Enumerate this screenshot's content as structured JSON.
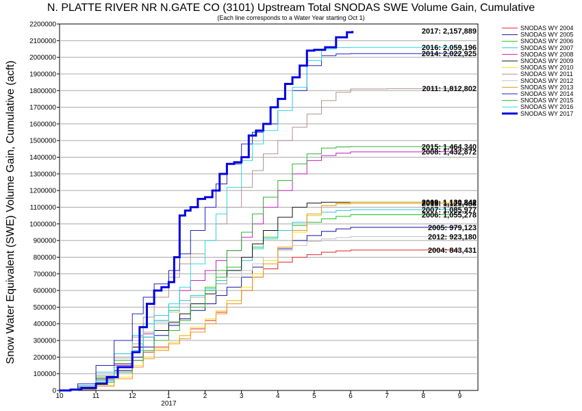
{
  "chart_data": {
    "type": "line",
    "title": "N. PLATTE RIVER NR N.GATE CO (3101) Upstream Total SNODAS SWE Volume Gain, Cumulative",
    "subtitle": "(Each line corresponds to a Water Year starting Oct 1)",
    "ylabel": "Snow Water Equivalent (SWE) Volume Gain, Cumulative (acft)",
    "xlabel": "",
    "x_unit": "month",
    "xlim": [
      10,
      21.5
    ],
    "ylim": [
      0,
      2200000
    ],
    "y_ticks": [
      0,
      100000,
      200000,
      300000,
      400000,
      500000,
      600000,
      700000,
      800000,
      900000,
      1000000,
      1100000,
      1200000,
      1300000,
      1400000,
      1500000,
      1600000,
      1700000,
      1800000,
      1900000,
      2000000,
      2100000,
      2200000
    ],
    "y_tick_labels": [
      "0",
      "100000",
      "200000",
      "300000",
      "400000",
      "500000",
      "600000",
      "700000",
      "800000",
      "900000",
      "1000000",
      "1100000",
      "1200000",
      "1300000",
      "1400000",
      "1500000",
      "1600000",
      "1700000",
      "1800000",
      "1900000",
      "2000000",
      "2100000",
      "2200000"
    ],
    "x_ticks": [
      10,
      11,
      12,
      13,
      14,
      15,
      16,
      17,
      18,
      19,
      20,
      21
    ],
    "x_tick_labels": [
      "10",
      "11",
      "12",
      "1",
      "2",
      "3",
      "4",
      "5",
      "6",
      "7",
      "8",
      "9"
    ],
    "x_year_label": "2017",
    "grid": "horizontal",
    "legend_position": "right-outside",
    "series": [
      {
        "name": "SNODAS WY 2004",
        "color": "#e02020",
        "width": 1,
        "end_label": "2004: 843,431",
        "end_label_y": 843431,
        "x": [
          10,
          10.5,
          11,
          11.5,
          12,
          12.3,
          12.6,
          13,
          13.3,
          13.6,
          14,
          14.3,
          14.6,
          15,
          15.3,
          15.6,
          16,
          16.4,
          16.8,
          17.2,
          17.6,
          18,
          19,
          20,
          21
        ],
        "y": [
          0,
          10000,
          50000,
          120000,
          180000,
          230000,
          260000,
          290000,
          330000,
          370000,
          420000,
          470000,
          540000,
          600000,
          680000,
          730000,
          770000,
          800000,
          815000,
          830000,
          838000,
          843000,
          843000,
          843431,
          843431
        ]
      },
      {
        "name": "SNODAS WY 2005",
        "color": "#1010a0",
        "width": 1,
        "end_label": "2005: 979,123",
        "end_label_y": 979123,
        "x": [
          10,
          10.5,
          11,
          11.5,
          12,
          12.3,
          12.6,
          13,
          13.3,
          13.6,
          14,
          14.3,
          14.6,
          15,
          15.3,
          15.6,
          16,
          16.4,
          16.8,
          17.2,
          17.6,
          18,
          19,
          20,
          21
        ],
        "y": [
          0,
          20000,
          60000,
          120000,
          200000,
          260000,
          330000,
          390000,
          430000,
          480000,
          520000,
          570000,
          620000,
          680000,
          740000,
          800000,
          850000,
          900000,
          930000,
          955000,
          970000,
          979000,
          979000,
          979123,
          979123
        ]
      },
      {
        "name": "SNODAS WY 2006",
        "color": "#20c020",
        "width": 1,
        "end_label": "2006: 1,055,278",
        "end_label_y": 1055278,
        "x": [
          10,
          10.5,
          11,
          11.5,
          12,
          12.3,
          12.6,
          13,
          13.3,
          13.6,
          14,
          14.3,
          14.6,
          15,
          15.3,
          15.6,
          16,
          16.4,
          16.8,
          17.2,
          17.6,
          18,
          19,
          20,
          21
        ],
        "y": [
          0,
          15000,
          80000,
          180000,
          280000,
          350000,
          420000,
          480000,
          520000,
          560000,
          620000,
          680000,
          740000,
          800000,
          860000,
          920000,
          960000,
          990000,
          1010000,
          1030000,
          1045000,
          1055000,
          1055000,
          1055278,
          1055278
        ]
      },
      {
        "name": "SNODAS WY 2007",
        "color": "#20c8d8",
        "width": 1,
        "end_label": "2007: 1,085,977",
        "end_label_y": 1085977,
        "x": [
          10,
          10.5,
          11,
          11.5,
          12,
          12.3,
          12.6,
          13,
          13.3,
          13.6,
          14,
          14.3,
          14.6,
          15,
          15.3,
          15.6,
          16,
          16.4,
          16.8,
          17.2,
          17.6,
          18,
          19,
          20,
          21
        ],
        "y": [
          0,
          30000,
          110000,
          220000,
          330000,
          400000,
          450000,
          500000,
          540000,
          570000,
          610000,
          660000,
          720000,
          780000,
          850000,
          910000,
          960000,
          1010000,
          1050000,
          1070000,
          1080000,
          1085000,
          1085000,
          1085977,
          1085977
        ]
      },
      {
        "name": "SNODAS WY 2008",
        "color": "#c020c0",
        "width": 1,
        "end_label": "2008: 1,432,872",
        "end_label_y": 1432872,
        "x": [
          10,
          10.5,
          11,
          11.5,
          12,
          12.3,
          12.6,
          13,
          13.3,
          13.6,
          14,
          14.3,
          14.6,
          15,
          15.3,
          15.6,
          16,
          16.4,
          16.8,
          17.2,
          17.6,
          18,
          19,
          20,
          21
        ],
        "y": [
          0,
          10000,
          60000,
          150000,
          260000,
          340000,
          420000,
          520000,
          600000,
          660000,
          720000,
          780000,
          840000,
          920000,
          1000000,
          1100000,
          1200000,
          1300000,
          1380000,
          1410000,
          1425000,
          1432000,
          1432000,
          1432872,
          1432872
        ]
      },
      {
        "name": "SNODAS WY 2009",
        "color": "#101010",
        "width": 1,
        "end_label": "2009: 1,130,842",
        "end_label_y": 1130842,
        "x": [
          10,
          10.5,
          11,
          11.5,
          12,
          12.3,
          12.6,
          13,
          13.3,
          13.6,
          14,
          14.3,
          14.6,
          15,
          15.3,
          15.6,
          16,
          16.4,
          16.8,
          17.2,
          17.6,
          18,
          19,
          20,
          21
        ],
        "y": [
          0,
          20000,
          70000,
          160000,
          260000,
          320000,
          360000,
          410000,
          460000,
          520000,
          580000,
          640000,
          720000,
          800000,
          880000,
          960000,
          1040000,
          1100000,
          1125000,
          1130000,
          1130000,
          1130000,
          1130000,
          1130842,
          1130842
        ]
      },
      {
        "name": "SNODAS WY 2010",
        "color": "#f0e020",
        "width": 1,
        "end_label": "2010: 1,130,842",
        "end_label_y": 1130842,
        "x": [
          10,
          10.5,
          11,
          11.5,
          12,
          12.3,
          12.6,
          13,
          13.3,
          13.6,
          14,
          14.3,
          14.6,
          15,
          15.3,
          15.6,
          16,
          16.4,
          16.8,
          17.2,
          17.6,
          18,
          19,
          20,
          21
        ],
        "y": [
          0,
          5000,
          30000,
          80000,
          150000,
          200000,
          250000,
          290000,
          330000,
          380000,
          430000,
          480000,
          540000,
          620000,
          700000,
          780000,
          860000,
          950000,
          1050000,
          1110000,
          1125000,
          1130000,
          1130000,
          1130842,
          1130842
        ]
      },
      {
        "name": "SNODAS WY 2011",
        "color": "#b09090",
        "width": 1,
        "end_label": "2011: 1,812,802",
        "end_label_y": 1812802,
        "x": [
          10,
          10.5,
          11,
          11.5,
          12,
          12.3,
          12.6,
          13,
          13.3,
          13.6,
          14,
          14.3,
          14.6,
          15,
          15.3,
          15.6,
          16,
          16.4,
          16.8,
          17.2,
          17.6,
          18,
          19,
          20,
          21
        ],
        "y": [
          0,
          20000,
          90000,
          200000,
          320000,
          440000,
          560000,
          680000,
          760000,
          820000,
          900000,
          1000000,
          1100000,
          1220000,
          1320000,
          1420000,
          1500000,
          1580000,
          1660000,
          1740000,
          1790000,
          1810000,
          1812000,
          1812802,
          1812802
        ]
      },
      {
        "name": "SNODAS WY 2012",
        "color": "#c0c0c0",
        "width": 1,
        "end_label": "2012: 923,180",
        "end_label_y": 923180,
        "x": [
          10,
          10.5,
          11,
          11.5,
          12,
          12.3,
          12.6,
          13,
          13.3,
          13.6,
          14,
          14.3,
          14.6,
          15,
          15.3,
          15.6,
          16,
          16.4,
          16.8,
          17.2,
          17.6,
          18,
          19,
          20,
          21
        ],
        "y": [
          0,
          25000,
          100000,
          190000,
          280000,
          350000,
          410000,
          470000,
          520000,
          560000,
          600000,
          640000,
          680000,
          720000,
          760000,
          800000,
          840000,
          870000,
          895000,
          910000,
          918000,
          923000,
          923000,
          923180,
          923180
        ]
      },
      {
        "name": "SNODAS WY 2013",
        "color": "#f09020",
        "width": 1,
        "end_label": "2013: 1,123,488",
        "end_label_y": 1123488,
        "x": [
          10,
          10.5,
          11,
          11.5,
          12,
          12.3,
          12.6,
          13,
          13.3,
          13.6,
          14,
          14.3,
          14.6,
          15,
          15.3,
          15.6,
          16,
          16.4,
          16.8,
          17.2,
          17.6,
          18,
          19,
          20,
          21
        ],
        "y": [
          0,
          5000,
          25000,
          70000,
          140000,
          190000,
          240000,
          280000,
          310000,
          350000,
          400000,
          460000,
          520000,
          600000,
          680000,
          760000,
          860000,
          960000,
          1060000,
          1110000,
          1120000,
          1123000,
          1123000,
          1123488,
          1123488
        ]
      },
      {
        "name": "SNODAS WY 2014",
        "color": "#2020c0",
        "width": 1,
        "end_label": "2014: 2,022,925",
        "end_label_y": 2022925,
        "x": [
          10,
          10.5,
          11,
          11.5,
          12,
          12.3,
          12.6,
          13,
          13.3,
          13.6,
          14,
          14.3,
          14.6,
          15,
          15.3,
          15.6,
          16,
          16.4,
          16.8,
          17.2,
          17.6,
          18,
          19,
          20,
          21
        ],
        "y": [
          0,
          40000,
          150000,
          300000,
          460000,
          560000,
          640000,
          720000,
          820000,
          960000,
          1100000,
          1240000,
          1360000,
          1480000,
          1550000,
          1600000,
          1680000,
          1800000,
          1950000,
          2010000,
          2020000,
          2022000,
          2022000,
          2022925,
          2022925
        ]
      },
      {
        "name": "SNODAS WY 2015",
        "color": "#30b030",
        "width": 1,
        "end_label": "2015: 1,464,340",
        "end_label_y": 1464340,
        "x": [
          10,
          10.5,
          11,
          11.5,
          12,
          12.3,
          12.6,
          13,
          13.3,
          13.6,
          14,
          14.3,
          14.6,
          15,
          15.3,
          15.6,
          16,
          16.4,
          16.8,
          17.2,
          17.6,
          18,
          19,
          20,
          21
        ],
        "y": [
          0,
          10000,
          50000,
          110000,
          180000,
          240000,
          300000,
          360000,
          420000,
          500000,
          600000,
          720000,
          840000,
          950000,
          1060000,
          1160000,
          1260000,
          1360000,
          1420000,
          1455000,
          1462000,
          1464000,
          1464000,
          1464340,
          1464340
        ]
      },
      {
        "name": "SNODAS WY 2016",
        "color": "#30d8e8",
        "width": 1,
        "end_label": "2016: 2,059,196",
        "end_label_y": 2059196,
        "x": [
          10,
          10.5,
          11,
          11.5,
          12,
          12.3,
          12.6,
          13,
          13.3,
          13.6,
          14,
          14.3,
          14.6,
          15,
          15.3,
          15.6,
          16,
          16.4,
          16.8,
          17.2,
          17.6,
          18,
          19,
          20,
          21
        ],
        "y": [
          0,
          10000,
          60000,
          140000,
          240000,
          320000,
          420000,
          520000,
          620000,
          760000,
          900000,
          1060000,
          1220000,
          1380000,
          1480000,
          1560000,
          1680000,
          1820000,
          1980000,
          2050000,
          2058000,
          2059000,
          2059000,
          2059196,
          2059196
        ]
      },
      {
        "name": "SNODAS WY 2017",
        "color": "#0000e0",
        "width": 3,
        "end_label": "2017: 2,157,889",
        "end_label_y": 2157889,
        "x": [
          10,
          10.3,
          10.6,
          11,
          11.3,
          11.6,
          12,
          12.2,
          12.4,
          12.6,
          12.8,
          13,
          13.15,
          13.3,
          13.45,
          13.6,
          13.8,
          14,
          14.2,
          14.4,
          14.6,
          14.8,
          15,
          15.2,
          15.4,
          15.6,
          15.8,
          16,
          16.2,
          16.4,
          16.6,
          16.8,
          17,
          17.3,
          17.6,
          17.9,
          18.05
        ],
        "y": [
          0,
          5000,
          15000,
          40000,
          80000,
          140000,
          230000,
          380000,
          520000,
          600000,
          620000,
          650000,
          800000,
          1050000,
          1080000,
          1100000,
          1150000,
          1160000,
          1200000,
          1300000,
          1360000,
          1370000,
          1400000,
          1530000,
          1560000,
          1600000,
          1700000,
          1750000,
          1840000,
          1880000,
          1950000,
          2040000,
          2045000,
          2060000,
          2120000,
          2150000,
          2157889
        ]
      }
    ]
  }
}
